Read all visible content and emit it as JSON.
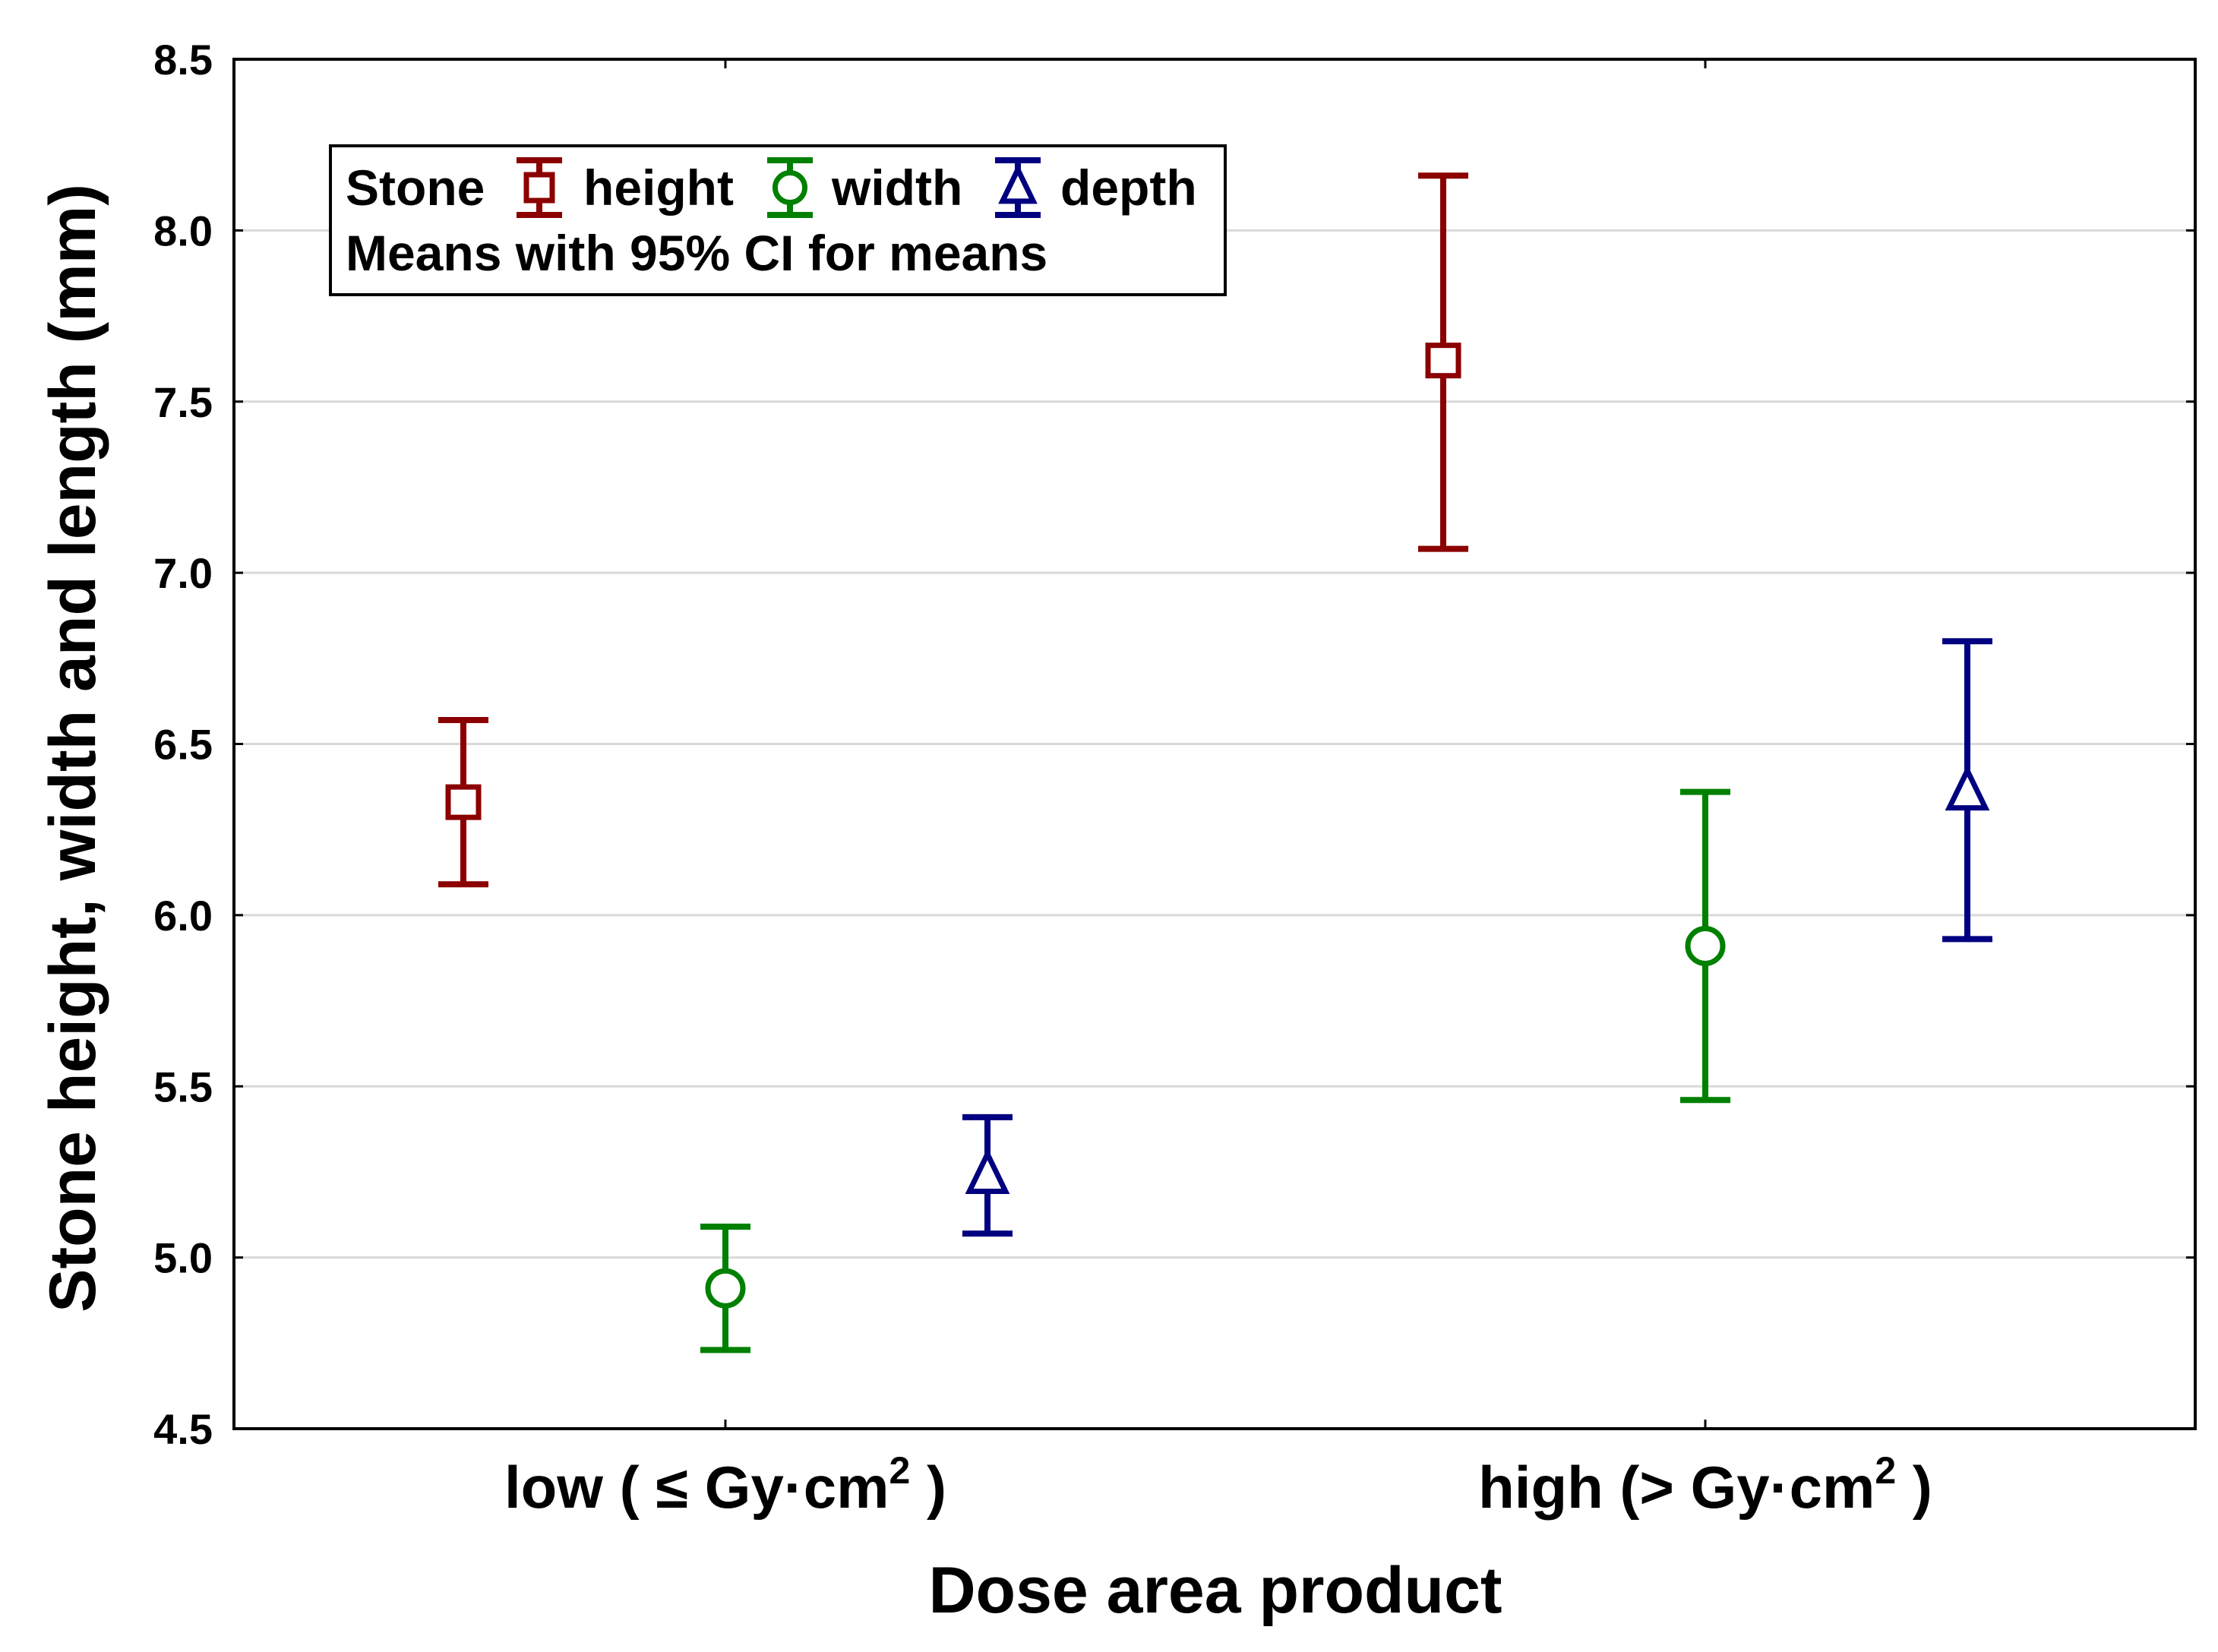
{
  "chart_data": {
    "type": "errorbar",
    "xlabel": "Dose area product",
    "ylabel": "Stone height, width and length (mm)",
    "ylim": [
      4.5,
      8.5
    ],
    "yticks": [
      "4.5",
      "5.0",
      "5.5",
      "6.0",
      "6.5",
      "7.0",
      "7.5",
      "8.0",
      "8.5"
    ],
    "grid": true,
    "categories": [
      {
        "pre": "low ( ≤ Gy·cm",
        "sup": "2",
        "post": " )"
      },
      {
        "pre": "high (> Gy·cm",
        "sup": "2",
        "post": " )"
      }
    ],
    "legend": {
      "prefix": "Stone",
      "entries": [
        "height",
        "width",
        "depth"
      ],
      "subtitle": "Means with 95% CI for means"
    },
    "series": [
      {
        "name": "height",
        "marker": "square",
        "color": "#8b0000",
        "mean": [
          6.33,
          7.62
        ],
        "ci_low": [
          6.09,
          7.07
        ],
        "ci_high": [
          6.57,
          8.16
        ]
      },
      {
        "name": "width",
        "marker": "circle",
        "color": "#008000",
        "mean": [
          4.91,
          5.91
        ],
        "ci_low": [
          4.73,
          5.46
        ],
        "ci_high": [
          5.09,
          6.36
        ]
      },
      {
        "name": "depth",
        "marker": "triangle",
        "color": "#000080",
        "mean": [
          5.24,
          6.36
        ],
        "ci_low": [
          5.07,
          5.93
        ],
        "ci_high": [
          5.41,
          6.8
        ]
      }
    ]
  }
}
